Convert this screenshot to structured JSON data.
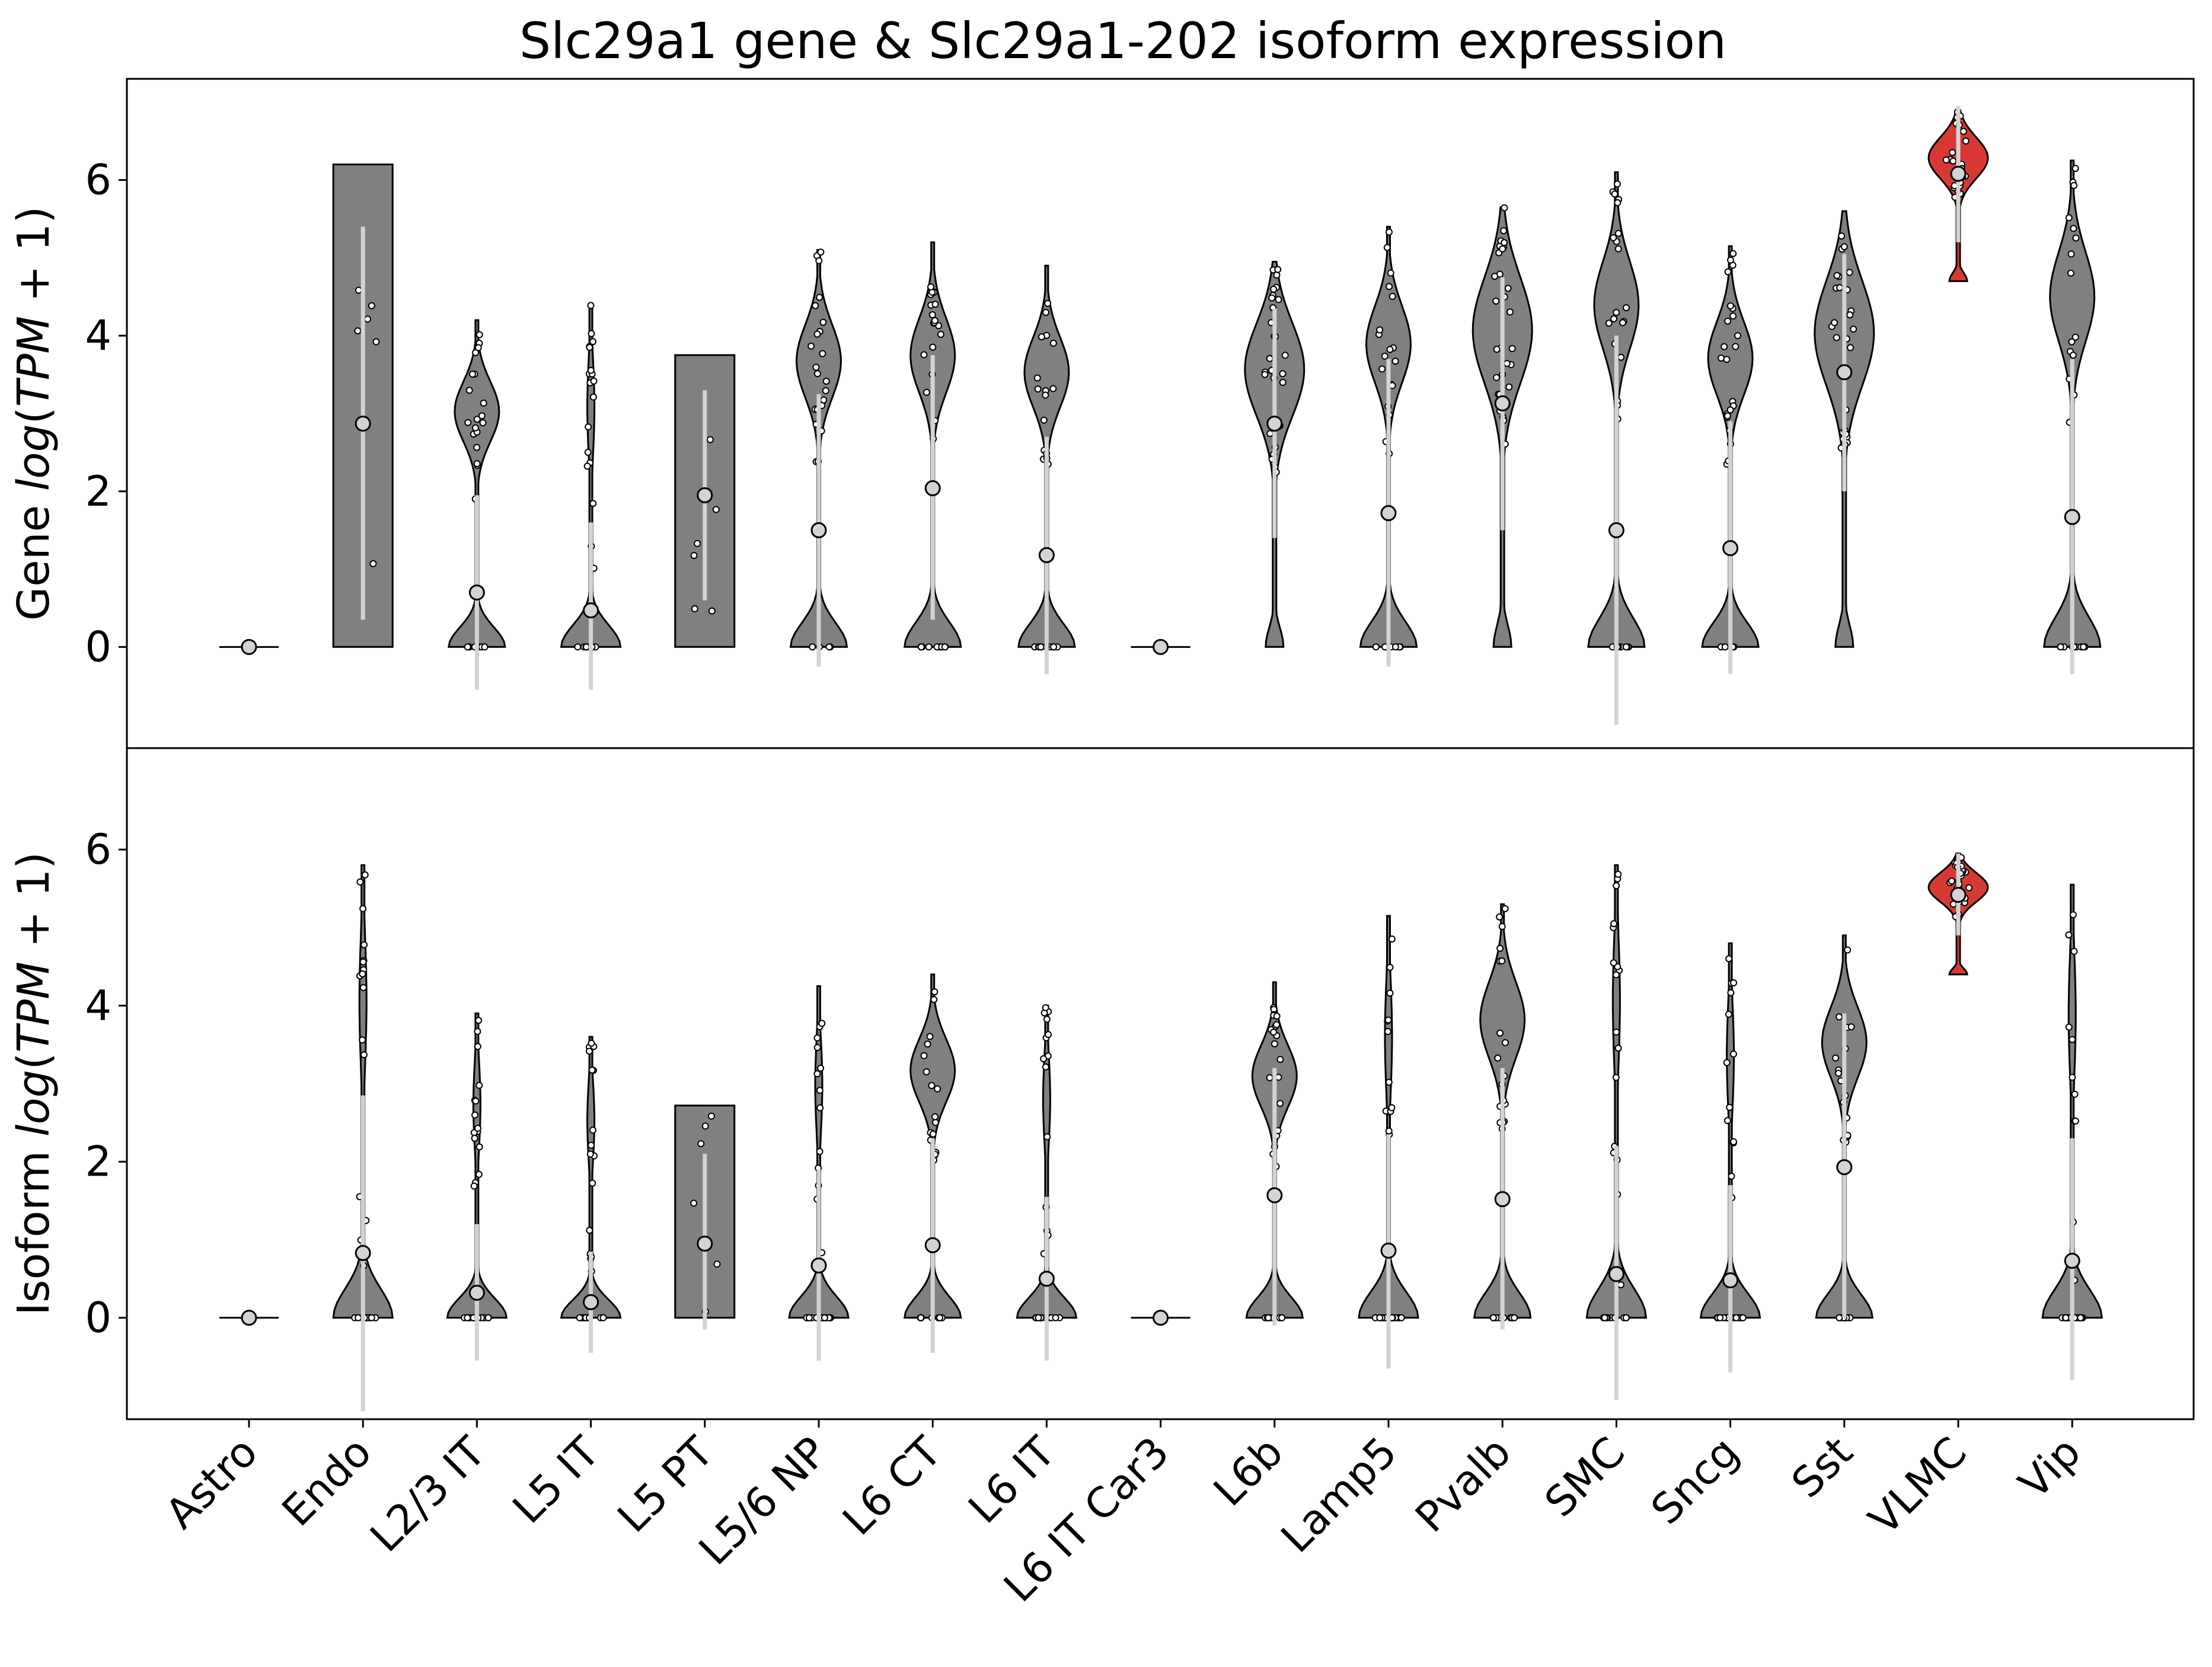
{
  "chart_data": {
    "type": "violin",
    "title": "Slc29a1 gene & Slc29a1-202 isoform expression",
    "categories": [
      "Astro",
      "Endo",
      "L2/3 IT",
      "L5 IT",
      "L5 PT",
      "L5/6 NP",
      "L6 CT",
      "L6 IT",
      "L6 IT Car3",
      "L6b",
      "Lamp5",
      "Pvalb",
      "SMC",
      "Sncg",
      "Sst",
      "VLMC",
      "Vip"
    ],
    "highlight": {
      "category": "VLMC",
      "color": "#d73a34"
    },
    "default_color": "#808080",
    "ylim": [
      -1.3,
      7.3
    ],
    "yticks": [
      0,
      2,
      4,
      6
    ],
    "panels": [
      {
        "name": "gene",
        "ylabel": {
          "prefix": "Gene ",
          "italic": "log",
          "mid": "(",
          "italic2": "TPM",
          "suffix": " + 1)"
        },
        "violins": [
          {
            "min": 0,
            "max": 0,
            "mean": 0,
            "sdlo": 0,
            "sdhi": 0,
            "density": "flat"
          },
          {
            "min": 0,
            "max": 6.2,
            "mean": 2.87,
            "sdlo": 0.35,
            "sdhi": 5.4,
            "density": "flat"
          },
          {
            "min": 0,
            "max": 4.2,
            "mean": 0.7,
            "sdlo": -0.55,
            "sdhi": 1.95,
            "density": "bimodal"
          },
          {
            "min": 0,
            "max": 4.4,
            "mean": 0.47,
            "sdlo": -0.55,
            "sdhi": 1.6,
            "density": "bottom"
          },
          {
            "min": 0,
            "max": 3.75,
            "mean": 1.95,
            "sdlo": 0.6,
            "sdhi": 3.3,
            "density": "flat"
          },
          {
            "min": 0,
            "max": 5.1,
            "mean": 1.5,
            "sdlo": -0.25,
            "sdhi": 3.25,
            "density": "bimodal"
          },
          {
            "min": 0,
            "max": 5.2,
            "mean": 2.04,
            "sdlo": 0.35,
            "sdhi": 3.75,
            "density": "bimodal"
          },
          {
            "min": 0,
            "max": 4.9,
            "mean": 1.18,
            "sdlo": -0.35,
            "sdhi": 2.7,
            "density": "bimodal"
          },
          {
            "min": 0,
            "max": 0,
            "mean": 0,
            "sdlo": 0,
            "sdhi": 0,
            "density": "flat"
          },
          {
            "min": 0,
            "max": 4.95,
            "mean": 2.87,
            "sdlo": 1.4,
            "sdhi": 4.35,
            "density": "top"
          },
          {
            "min": 0,
            "max": 5.4,
            "mean": 1.72,
            "sdlo": -0.25,
            "sdhi": 3.7,
            "density": "bimodal"
          },
          {
            "min": 0,
            "max": 5.65,
            "mean": 3.13,
            "sdlo": 1.5,
            "sdhi": 4.75,
            "density": "top"
          },
          {
            "min": 0,
            "max": 6.1,
            "mean": 1.5,
            "sdlo": -1.0,
            "sdhi": 4.0,
            "density": "bimodal"
          },
          {
            "min": 0,
            "max": 5.15,
            "mean": 1.27,
            "sdlo": -0.35,
            "sdhi": 2.9,
            "density": "bimodal"
          },
          {
            "min": 0,
            "max": 5.6,
            "mean": 3.53,
            "sdlo": 2.0,
            "sdhi": 5.05,
            "density": "top"
          },
          {
            "min": 4.7,
            "max": 6.9,
            "mean": 6.08,
            "sdlo": 5.2,
            "sdhi": 6.95,
            "density": "top"
          },
          {
            "min": 0,
            "max": 6.25,
            "mean": 1.67,
            "sdlo": -0.35,
            "sdhi": 3.7,
            "density": "bimodal"
          }
        ]
      },
      {
        "name": "isoform",
        "ylabel": {
          "prefix": "Isoform ",
          "italic": "log",
          "mid": "(",
          "italic2": "TPM",
          "suffix": " + 1)"
        },
        "violins": [
          {
            "min": 0,
            "max": 0,
            "mean": 0,
            "sdlo": 0,
            "sdhi": 0,
            "density": "flat"
          },
          {
            "min": 0,
            "max": 5.8,
            "mean": 0.83,
            "sdlo": -1.2,
            "sdhi": 2.85,
            "density": "bottom"
          },
          {
            "min": 0,
            "max": 3.9,
            "mean": 0.32,
            "sdlo": -0.55,
            "sdhi": 1.2,
            "density": "bottom"
          },
          {
            "min": 0,
            "max": 3.6,
            "mean": 0.2,
            "sdlo": -0.45,
            "sdhi": 0.85,
            "density": "bottom"
          },
          {
            "min": 0,
            "max": 2.72,
            "mean": 0.95,
            "sdlo": -0.15,
            "sdhi": 2.1,
            "density": "flat"
          },
          {
            "min": 0,
            "max": 4.25,
            "mean": 0.67,
            "sdlo": -0.55,
            "sdhi": 1.9,
            "density": "bottom"
          },
          {
            "min": 0,
            "max": 4.4,
            "mean": 0.93,
            "sdlo": -0.45,
            "sdhi": 2.3,
            "density": "bimodal"
          },
          {
            "min": 0,
            "max": 4.0,
            "mean": 0.5,
            "sdlo": -0.55,
            "sdhi": 1.55,
            "density": "bottom"
          },
          {
            "min": 0,
            "max": 0,
            "mean": 0,
            "sdlo": 0,
            "sdhi": 0,
            "density": "flat"
          },
          {
            "min": 0,
            "max": 4.3,
            "mean": 1.57,
            "sdlo": -0.1,
            "sdhi": 3.2,
            "density": "bimodal"
          },
          {
            "min": 0,
            "max": 5.15,
            "mean": 0.86,
            "sdlo": -0.65,
            "sdhi": 2.35,
            "density": "bottom"
          },
          {
            "min": 0,
            "max": 5.3,
            "mean": 1.52,
            "sdlo": -0.15,
            "sdhi": 3.2,
            "density": "bimodal"
          },
          {
            "min": 0,
            "max": 5.8,
            "mean": 0.56,
            "sdlo": -1.05,
            "sdhi": 2.2,
            "density": "bottom"
          },
          {
            "min": 0,
            "max": 4.8,
            "mean": 0.48,
            "sdlo": -0.7,
            "sdhi": 1.7,
            "density": "bottom"
          },
          {
            "min": 0,
            "max": 4.9,
            "mean": 1.93,
            "sdlo": 0.0,
            "sdhi": 3.9,
            "density": "bimodal"
          },
          {
            "min": 4.4,
            "max": 5.95,
            "mean": 5.42,
            "sdlo": 4.9,
            "sdhi": 5.95,
            "density": "top"
          },
          {
            "min": 0,
            "max": 5.55,
            "mean": 0.73,
            "sdlo": -0.8,
            "sdhi": 2.3,
            "density": "bottom"
          }
        ]
      }
    ]
  }
}
